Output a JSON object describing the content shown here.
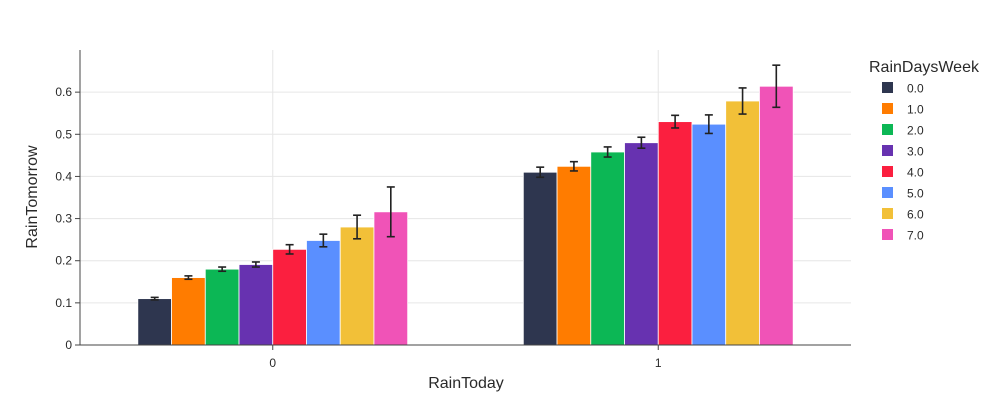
{
  "chart_data": {
    "type": "bar",
    "title": "",
    "xlabel": "RainToday",
    "ylabel": "RainTomorrow",
    "categories": [
      "0",
      "1"
    ],
    "ylim": [
      0,
      0.7
    ],
    "yticks": [
      0,
      0.1,
      0.2,
      0.3,
      0.4,
      0.5,
      0.6
    ],
    "ytick_labels": [
      "0",
      "0.1",
      "0.2",
      "0.3",
      "0.4",
      "0.5",
      "0.6"
    ],
    "grid": true,
    "error_bars": true,
    "legend": {
      "title": "RainDaysWeek",
      "placement": "right"
    },
    "series": [
      {
        "name": "0.0",
        "color": "#2e364f",
        "values": [
          0.11,
          0.41
        ],
        "err": [
          0.003,
          0.012
        ]
      },
      {
        "name": "1.0",
        "color": "#ff7c00",
        "values": [
          0.16,
          0.424
        ],
        "err": [
          0.004,
          0.011
        ]
      },
      {
        "name": "2.0",
        "color": "#0cb755",
        "values": [
          0.18,
          0.458
        ],
        "err": [
          0.005,
          0.012
        ]
      },
      {
        "name": "3.0",
        "color": "#6732b0",
        "values": [
          0.191,
          0.48
        ],
        "err": [
          0.006,
          0.013
        ]
      },
      {
        "name": "4.0",
        "color": "#fb1f3f",
        "values": [
          0.227,
          0.53
        ],
        "err": [
          0.011,
          0.015
        ]
      },
      {
        "name": "5.0",
        "color": "#5a8fff",
        "values": [
          0.248,
          0.524
        ],
        "err": [
          0.015,
          0.022
        ]
      },
      {
        "name": "6.0",
        "color": "#f2c038",
        "values": [
          0.28,
          0.579
        ],
        "err": [
          0.028,
          0.031
        ]
      },
      {
        "name": "7.0",
        "color": "#f053b7",
        "values": [
          0.316,
          0.614
        ],
        "err": [
          0.059,
          0.05
        ]
      }
    ]
  }
}
